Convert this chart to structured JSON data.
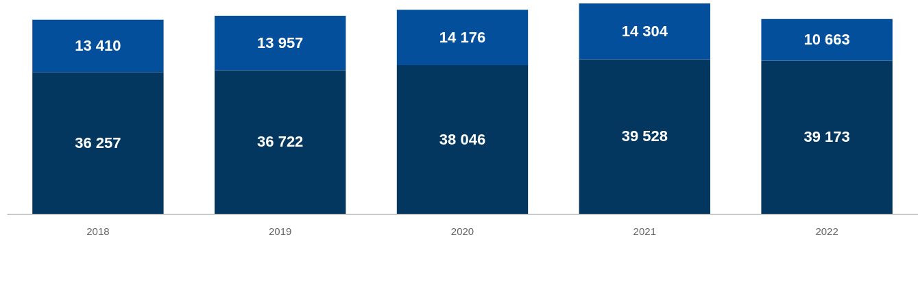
{
  "chart_data": {
    "type": "bar",
    "stacked": true,
    "categories": [
      "2018",
      "2019",
      "2020",
      "2021",
      "2022"
    ],
    "series": [
      {
        "color": "#03375f",
        "values": [
          36257,
          36722,
          38046,
          39528,
          39173
        ],
        "value_labels": [
          "36 257",
          "36 722",
          "38 046",
          "39 528",
          "39 173"
        ]
      },
      {
        "color": "#034f9c",
        "values": [
          13410,
          13957,
          14176,
          14304,
          10663
        ],
        "value_labels": [
          "13 410",
          "13 957",
          "14 176",
          "14 304",
          "10 663"
        ]
      }
    ],
    "grid": false,
    "tick_labels": "x"
  }
}
